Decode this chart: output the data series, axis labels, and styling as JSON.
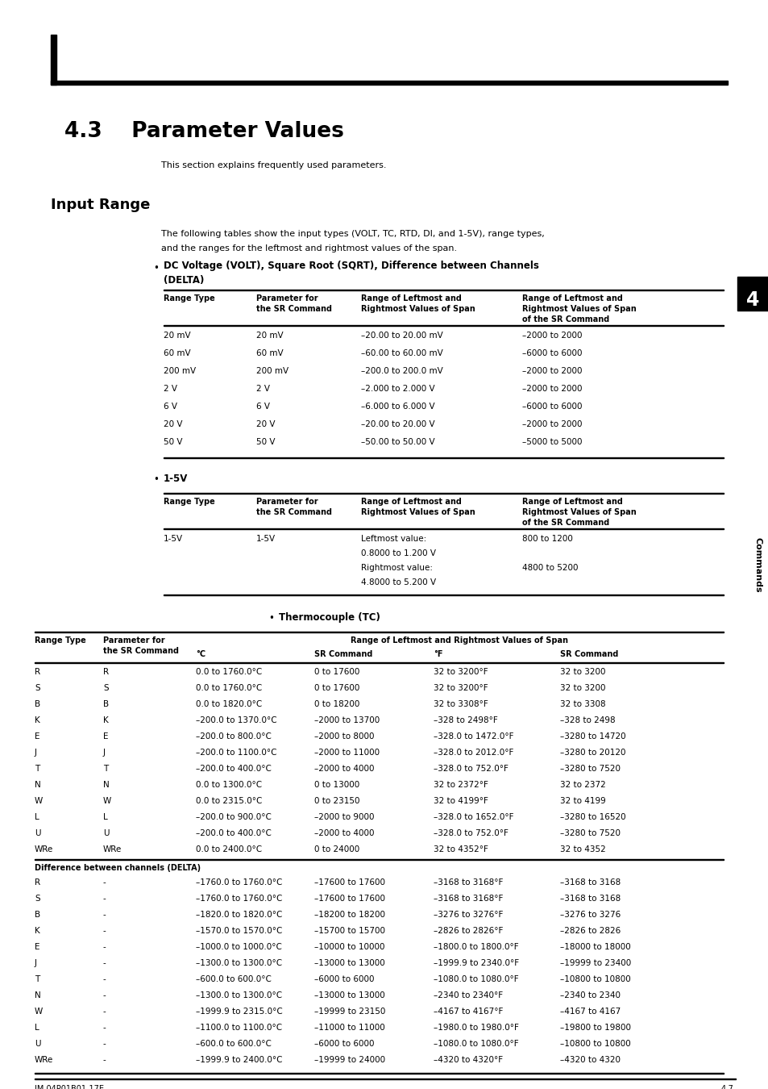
{
  "title": "4.3    Parameter Values",
  "subtitle": "This section explains frequently used parameters.",
  "section_title": "Input Range",
  "section_text1": "The following tables show the input types (VOLT, TC, RTD, DI, and 1-5V), range types,",
  "section_text2": "and the ranges for the leftmost and rightmost values of the span.",
  "table1_data": [
    [
      "20 mV",
      "20 mV",
      "–20.00 to 20.00 mV",
      "–2000 to 2000"
    ],
    [
      "60 mV",
      "60 mV",
      "–60.00 to 60.00 mV",
      "–6000 to 6000"
    ],
    [
      "200 mV",
      "200 mV",
      "–200.0 to 200.0 mV",
      "–2000 to 2000"
    ],
    [
      "2 V",
      "2 V",
      "–2.000 to 2.000 V",
      "–2000 to 2000"
    ],
    [
      "6 V",
      "6 V",
      "–6.000 to 6.000 V",
      "–6000 to 6000"
    ],
    [
      "20 V",
      "20 V",
      "–20.00 to 20.00 V",
      "–2000 to 2000"
    ],
    [
      "50 V",
      "50 V",
      "–50.00 to 50.00 V",
      "–5000 to 5000"
    ]
  ],
  "table3_data": [
    [
      "R",
      "R",
      "0.0 to 1760.0°C",
      "0 to 17600",
      "32 to 3200°F",
      "32 to 3200"
    ],
    [
      "S",
      "S",
      "0.0 to 1760.0°C",
      "0 to 17600",
      "32 to 3200°F",
      "32 to 3200"
    ],
    [
      "B",
      "B",
      "0.0 to 1820.0°C",
      "0 to 18200",
      "32 to 3308°F",
      "32 to 3308"
    ],
    [
      "K",
      "K",
      "–200.0 to 1370.0°C",
      "–2000 to 13700",
      "–328 to 2498°F",
      "–328 to 2498"
    ],
    [
      "E",
      "E",
      "–200.0 to 800.0°C",
      "–2000 to 8000",
      "–328.0 to 1472.0°F",
      "–3280 to 14720"
    ],
    [
      "J",
      "J",
      "–200.0 to 1100.0°C",
      "–2000 to 11000",
      "–328.0 to 2012.0°F",
      "–3280 to 20120"
    ],
    [
      "T",
      "T",
      "–200.0 to 400.0°C",
      "–2000 to 4000",
      "–328.0 to 752.0°F",
      "–3280 to 7520"
    ],
    [
      "N",
      "N",
      "0.0 to 1300.0°C",
      "0 to 13000",
      "32 to 2372°F",
      "32 to 2372"
    ],
    [
      "W",
      "W",
      "0.0 to 2315.0°C",
      "0 to 23150",
      "32 to 4199°F",
      "32 to 4199"
    ],
    [
      "L",
      "L",
      "–200.0 to 900.0°C",
      "–2000 to 9000",
      "–328.0 to 1652.0°F",
      "–3280 to 16520"
    ],
    [
      "U",
      "U",
      "–200.0 to 400.0°C",
      "–2000 to 4000",
      "–328.0 to 752.0°F",
      "–3280 to 7520"
    ],
    [
      "WRe",
      "WRe",
      "0.0 to 2400.0°C",
      "0 to 24000",
      "32 to 4352°F",
      "32 to 4352"
    ]
  ],
  "table3_delta_header": "Difference between channels (DELTA)",
  "table3_delta_data": [
    [
      "R",
      "-",
      "–1760.0 to 1760.0°C",
      "–17600 to 17600",
      "–3168 to 3168°F",
      "–3168 to 3168"
    ],
    [
      "S",
      "-",
      "–1760.0 to 1760.0°C",
      "–17600 to 17600",
      "–3168 to 3168°F",
      "–3168 to 3168"
    ],
    [
      "B",
      "-",
      "–1820.0 to 1820.0°C",
      "–18200 to 18200",
      "–3276 to 3276°F",
      "–3276 to 3276"
    ],
    [
      "K",
      "-",
      "–1570.0 to 1570.0°C",
      "–15700 to 15700",
      "–2826 to 2826°F",
      "–2826 to 2826"
    ],
    [
      "E",
      "-",
      "–1000.0 to 1000.0°C",
      "–10000 to 10000",
      "–1800.0 to 1800.0°F",
      "–18000 to 18000"
    ],
    [
      "J",
      "-",
      "–1300.0 to 1300.0°C",
      "–13000 to 13000",
      "–1999.9 to 2340.0°F",
      "–19999 to 23400"
    ],
    [
      "T",
      "-",
      "–600.0 to 600.0°C",
      "–6000 to 6000",
      "–1080.0 to 1080.0°F",
      "–10800 to 10800"
    ],
    [
      "N",
      "-",
      "–1300.0 to 1300.0°C",
      "–13000 to 13000",
      "–2340 to 2340°F",
      "–2340 to 2340"
    ],
    [
      "W",
      "-",
      "–1999.9 to 2315.0°C",
      "–19999 to 23150",
      "–4167 to 4167°F",
      "–4167 to 4167"
    ],
    [
      "L",
      "-",
      "–1100.0 to 1100.0°C",
      "–11000 to 11000",
      "–1980.0 to 1980.0°F",
      "–19800 to 19800"
    ],
    [
      "U",
      "-",
      "–600.0 to 600.0°C",
      "–6000 to 6000",
      "–1080.0 to 1080.0°F",
      "–10800 to 10800"
    ],
    [
      "WRe",
      "-",
      "–1999.9 to 2400.0°C",
      "–19999 to 24000",
      "–4320 to 4320°F",
      "–4320 to 4320"
    ]
  ],
  "sidebar_text": "Commands",
  "sidebar_number": "4",
  "footer_left": "IM 04P01B01-17E",
  "footer_right": "4-7",
  "bg_color": "#ffffff"
}
